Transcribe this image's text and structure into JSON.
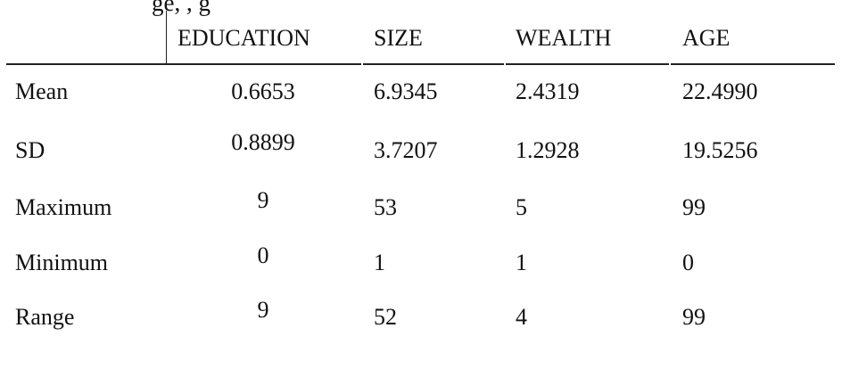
{
  "caption_fragment": "ge,                                   ,          g",
  "headers": [
    "",
    "EDUCATION",
    "SIZE",
    "WEALTH",
    "AGE"
  ],
  "rows": [
    {
      "label": "Mean",
      "values": [
        "0.6653",
        "6.9345",
        "2.4319",
        "22.4990"
      ]
    },
    {
      "label": "SD",
      "values": [
        "0.8899",
        "3.7207",
        "1.2928",
        "19.5256"
      ]
    },
    {
      "label": "Maximum",
      "values": [
        "9",
        "53",
        "5",
        "99"
      ]
    },
    {
      "label": "Minimum",
      "values": [
        "0",
        "1",
        "1",
        "0"
      ]
    },
    {
      "label": "Range",
      "values": [
        "9",
        "52",
        "4",
        "99"
      ]
    }
  ]
}
